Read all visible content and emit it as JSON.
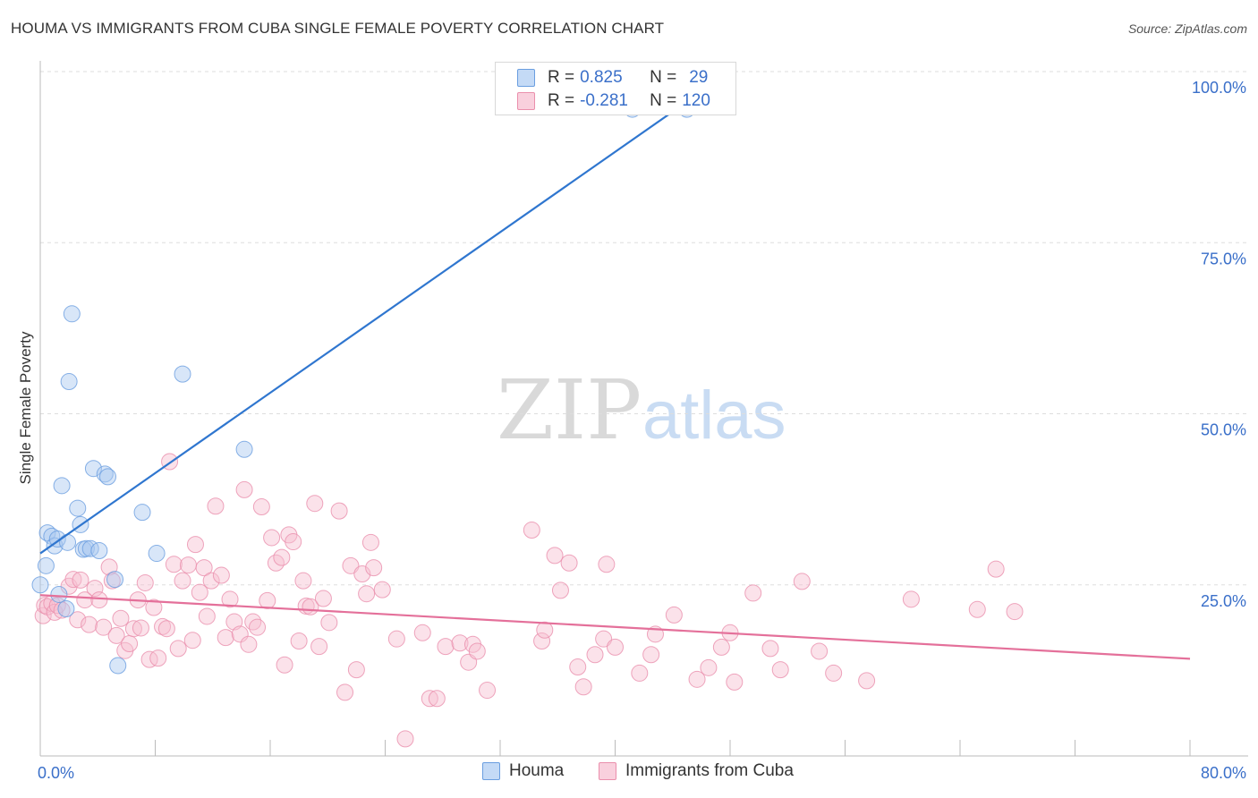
{
  "title": "HOUMA VS IMMIGRANTS FROM CUBA SINGLE FEMALE POVERTY CORRELATION CHART",
  "source": "Source: ZipAtlas.com",
  "watermark": {
    "zip": "ZIP",
    "atlas": "atlas"
  },
  "colors": {
    "blue_fill": "#a9c8f0",
    "blue_stroke": "#6a9ee0",
    "blue_line": "#2f76cf",
    "pink_fill": "#f6bfd0",
    "pink_stroke": "#ea8fac",
    "pink_line": "#e4709a",
    "axis_label": "#3a6fc9",
    "grid": "#dddddd"
  },
  "legend_top": {
    "rows": [
      {
        "r_label": "R =",
        "r_value": "0.825",
        "n_label": "N =",
        "n_value": "29",
        "color": "blue"
      },
      {
        "r_label": "R =",
        "r_value": "-0.281",
        "n_label": "N =",
        "n_value": "120",
        "color": "pink"
      }
    ]
  },
  "legend_bottom": [
    "Houma",
    "Immigrants from Cuba"
  ],
  "chart_data": {
    "type": "scatter",
    "title": "HOUMA VS IMMIGRANTS FROM CUBA SINGLE FEMALE POVERTY CORRELATION CHART",
    "xlabel": "",
    "ylabel": "Single Female Poverty",
    "xlim": [
      0,
      80
    ],
    "ylim": [
      0,
      100
    ],
    "x_tick_labels": [
      "0.0%",
      "80.0%"
    ],
    "y_tick_labels": [
      "25.0%",
      "50.0%",
      "75.0%",
      "100.0%"
    ],
    "y_ticks": [
      25,
      50,
      75,
      100
    ],
    "grid": true,
    "legend_position": "top-center",
    "series": [
      {
        "name": "Houma",
        "color": "blue",
        "r": 0.825,
        "n": 29,
        "trend": {
          "x1": 0,
          "y1": 29.6,
          "x2": 48,
          "y2": 100
        },
        "points": [
          [
            0.0,
            25.0
          ],
          [
            0.4,
            27.8
          ],
          [
            0.5,
            32.6
          ],
          [
            0.8,
            32.1
          ],
          [
            1.0,
            30.7
          ],
          [
            1.2,
            31.7
          ],
          [
            1.3,
            23.6
          ],
          [
            1.5,
            39.5
          ],
          [
            1.8,
            21.5
          ],
          [
            1.9,
            31.2
          ],
          [
            2.0,
            54.7
          ],
          [
            2.2,
            64.6
          ],
          [
            2.6,
            36.2
          ],
          [
            2.8,
            33.8
          ],
          [
            3.0,
            30.2
          ],
          [
            3.2,
            30.3
          ],
          [
            3.5,
            30.3
          ],
          [
            3.7,
            42.0
          ],
          [
            4.1,
            30.0
          ],
          [
            4.5,
            41.2
          ],
          [
            4.7,
            40.8
          ],
          [
            5.2,
            25.8
          ],
          [
            5.4,
            13.2
          ],
          [
            7.1,
            35.6
          ],
          [
            8.1,
            29.6
          ],
          [
            9.9,
            55.8
          ],
          [
            14.2,
            44.8
          ],
          [
            41.2,
            94.5
          ],
          [
            45.0,
            94.5
          ]
        ]
      },
      {
        "name": "Immigrants from Cuba",
        "color": "pink",
        "r": -0.281,
        "n": 120,
        "trend": {
          "x1": 0,
          "y1": 23.5,
          "x2": 80,
          "y2": 14.2
        },
        "points": [
          [
            0.2,
            20.5
          ],
          [
            0.3,
            22.0
          ],
          [
            0.5,
            21.8
          ],
          [
            0.8,
            22.3
          ],
          [
            1.0,
            21.0
          ],
          [
            1.2,
            22.0
          ],
          [
            1.5,
            21.3
          ],
          [
            2.0,
            24.8
          ],
          [
            2.3,
            25.8
          ],
          [
            2.6,
            19.9
          ],
          [
            2.8,
            25.7
          ],
          [
            3.1,
            22.8
          ],
          [
            3.4,
            19.2
          ],
          [
            3.8,
            24.5
          ],
          [
            4.1,
            22.8
          ],
          [
            4.4,
            18.8
          ],
          [
            4.8,
            27.6
          ],
          [
            5.0,
            25.6
          ],
          [
            5.3,
            17.6
          ],
          [
            5.6,
            20.1
          ],
          [
            5.9,
            15.4
          ],
          [
            6.2,
            16.4
          ],
          [
            6.5,
            18.6
          ],
          [
            6.8,
            22.8
          ],
          [
            7.0,
            18.7
          ],
          [
            7.3,
            25.3
          ],
          [
            7.6,
            14.1
          ],
          [
            7.9,
            21.7
          ],
          [
            8.2,
            14.3
          ],
          [
            8.5,
            18.9
          ],
          [
            8.8,
            18.6
          ],
          [
            9.0,
            43.0
          ],
          [
            9.3,
            28.0
          ],
          [
            9.6,
            15.7
          ],
          [
            9.9,
            25.6
          ],
          [
            10.3,
            27.9
          ],
          [
            10.6,
            16.9
          ],
          [
            10.8,
            30.9
          ],
          [
            11.1,
            23.9
          ],
          [
            11.4,
            27.5
          ],
          [
            11.6,
            20.4
          ],
          [
            11.9,
            25.6
          ],
          [
            12.2,
            36.5
          ],
          [
            12.6,
            26.4
          ],
          [
            12.9,
            17.3
          ],
          [
            13.2,
            22.9
          ],
          [
            13.5,
            19.6
          ],
          [
            13.9,
            17.8
          ],
          [
            14.2,
            38.9
          ],
          [
            14.5,
            16.3
          ],
          [
            14.8,
            19.6
          ],
          [
            15.1,
            18.8
          ],
          [
            15.4,
            36.4
          ],
          [
            15.8,
            22.7
          ],
          [
            16.1,
            31.9
          ],
          [
            16.4,
            28.2
          ],
          [
            16.8,
            29.0
          ],
          [
            17.0,
            13.3
          ],
          [
            17.3,
            32.3
          ],
          [
            17.6,
            31.3
          ],
          [
            18.0,
            16.8
          ],
          [
            18.3,
            25.6
          ],
          [
            18.5,
            21.9
          ],
          [
            18.8,
            21.8
          ],
          [
            19.1,
            36.9
          ],
          [
            19.4,
            16.0
          ],
          [
            19.7,
            23.0
          ],
          [
            20.1,
            19.5
          ],
          [
            20.8,
            35.8
          ],
          [
            21.2,
            9.3
          ],
          [
            21.6,
            27.8
          ],
          [
            22.0,
            12.6
          ],
          [
            22.4,
            26.6
          ],
          [
            22.7,
            23.7
          ],
          [
            23.0,
            31.2
          ],
          [
            23.2,
            27.5
          ],
          [
            23.8,
            24.3
          ],
          [
            24.8,
            17.1
          ],
          [
            25.4,
            2.5
          ],
          [
            26.6,
            18.0
          ],
          [
            27.1,
            8.4
          ],
          [
            27.6,
            8.4
          ],
          [
            28.2,
            16.0
          ],
          [
            29.2,
            16.5
          ],
          [
            29.8,
            13.7
          ],
          [
            30.1,
            16.3
          ],
          [
            30.4,
            15.3
          ],
          [
            31.1,
            9.6
          ],
          [
            34.2,
            33.0
          ],
          [
            34.9,
            16.8
          ],
          [
            35.1,
            18.4
          ],
          [
            35.8,
            29.3
          ],
          [
            36.2,
            24.2
          ],
          [
            36.8,
            28.2
          ],
          [
            37.4,
            13.0
          ],
          [
            37.8,
            10.1
          ],
          [
            38.6,
            14.8
          ],
          [
            39.2,
            17.1
          ],
          [
            39.4,
            28.0
          ],
          [
            40.0,
            15.9
          ],
          [
            41.7,
            12.1
          ],
          [
            42.5,
            14.8
          ],
          [
            42.8,
            17.8
          ],
          [
            44.1,
            20.6
          ],
          [
            45.7,
            11.2
          ],
          [
            46.5,
            12.9
          ],
          [
            47.4,
            15.9
          ],
          [
            48.0,
            18.0
          ],
          [
            48.3,
            10.8
          ],
          [
            49.6,
            23.8
          ],
          [
            50.8,
            15.7
          ],
          [
            51.5,
            12.6
          ],
          [
            53.0,
            25.5
          ],
          [
            54.2,
            15.3
          ],
          [
            55.2,
            12.1
          ],
          [
            57.5,
            11.0
          ],
          [
            60.6,
            22.9
          ],
          [
            65.2,
            21.4
          ],
          [
            66.5,
            27.3
          ],
          [
            67.8,
            21.1
          ]
        ]
      }
    ]
  }
}
